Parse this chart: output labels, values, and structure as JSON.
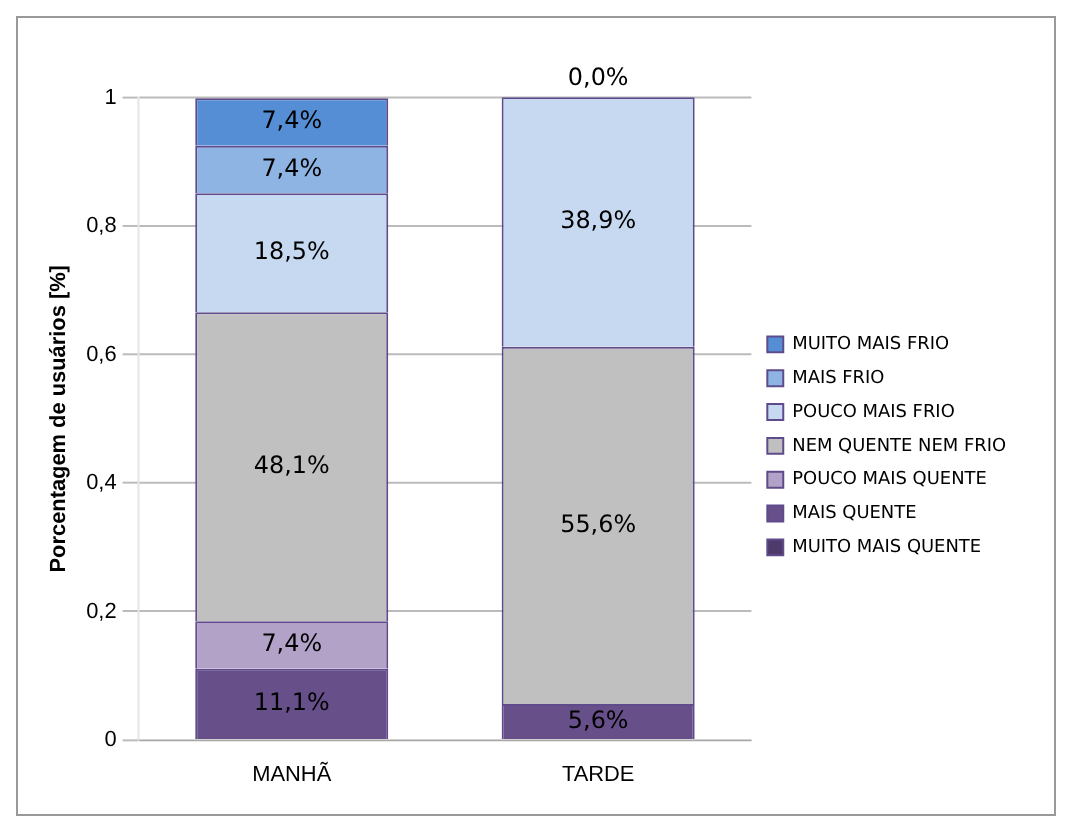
{
  "chart_data": {
    "type": "bar",
    "stacked": true,
    "ylabel": "Porcentagem de usuários [%]",
    "categories": [
      "MANHÃ",
      "TARDE"
    ],
    "series": [
      {
        "name": "MUITO MAIS QUENTE",
        "color": "#4f3b6b",
        "values": [
          0,
          0
        ],
        "value_labels": [
          null,
          null
        ]
      },
      {
        "name": "MAIS QUENTE",
        "color": "#674f8a",
        "values": [
          0.111,
          0.056
        ],
        "value_labels": [
          "11,1%",
          "5,6%"
        ]
      },
      {
        "name": "POUCO MAIS QUENTE",
        "color": "#b3a2c7",
        "values": [
          0.074,
          0
        ],
        "value_labels": [
          "7,4%",
          null
        ]
      },
      {
        "name": "NEM QUENTE NEM FRIO",
        "color": "#c0c0c0",
        "values": [
          0.481,
          0.556
        ],
        "value_labels": [
          "48,1%",
          "55,6%"
        ]
      },
      {
        "name": "POUCO MAIS FRIO",
        "color": "#c6d9f1",
        "values": [
          0.185,
          0.389
        ],
        "value_labels": [
          "18,5%",
          "38,9%"
        ]
      },
      {
        "name": "MAIS FRIO",
        "color": "#8eb4e3",
        "values": [
          0.074,
          0
        ],
        "value_labels": [
          "7,4%",
          null
        ]
      },
      {
        "name": "MUITO MAIS FRIO",
        "color": "#558ed5",
        "values": [
          0.074,
          0
        ],
        "value_labels": [
          "7,4%",
          "0,0%"
        ]
      }
    ],
    "ylim": [
      0,
      1
    ],
    "yticks": [
      0,
      {
        "value": 0.2,
        "label": "0,2"
      },
      {
        "value": 0.4,
        "label": "0,4"
      },
      {
        "value": 0.6,
        "label": "0,6"
      },
      {
        "value": 0.8,
        "label": "0,8"
      },
      1
    ],
    "grid": "y",
    "legend": "right"
  }
}
